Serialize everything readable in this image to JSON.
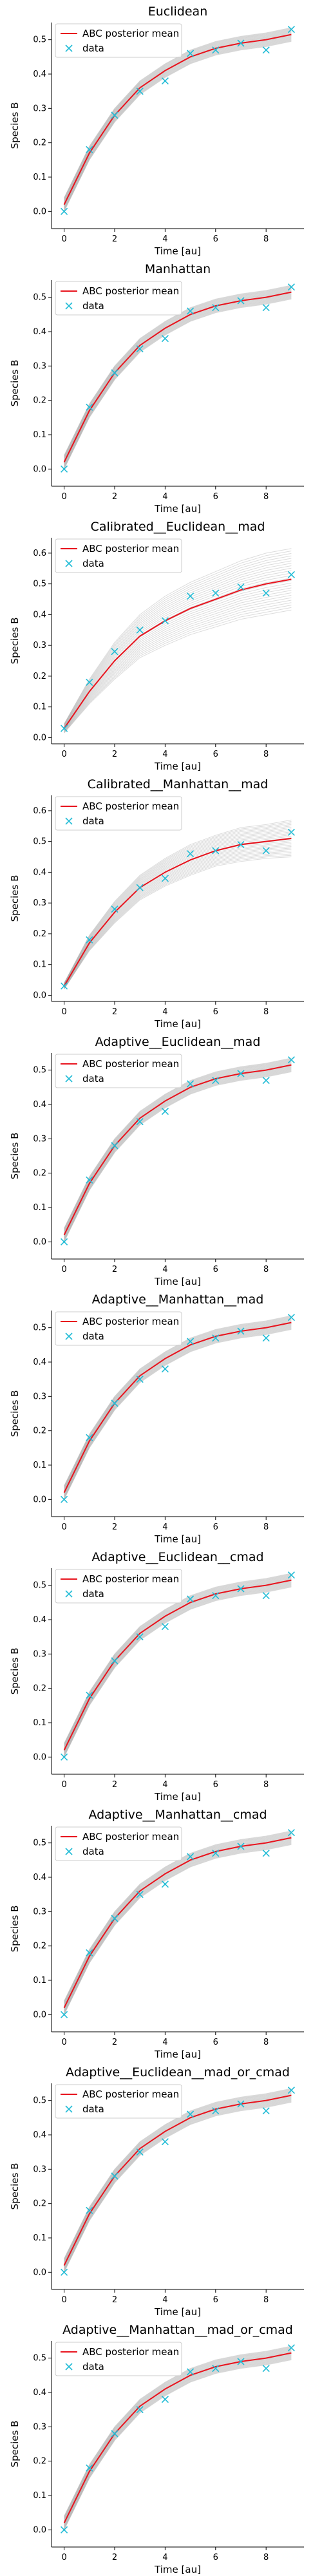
{
  "chart_data": [
    {
      "type": "line",
      "title": "Euclidean",
      "xlabel": "Time [au]",
      "ylabel": "Species B",
      "xlim": [
        -0.5,
        9.5
      ],
      "ylim": [
        -0.05,
        0.55
      ],
      "xticks": [
        0,
        2,
        4,
        6,
        8
      ],
      "yticks": [
        0.0,
        0.1,
        0.2,
        0.3,
        0.4,
        0.5
      ],
      "grid": false,
      "legend_position": "top-left",
      "series": [
        {
          "name": "ABC posterior mean",
          "style": "line",
          "color": "#e8141e",
          "x": [
            0,
            1,
            2,
            3,
            4,
            5,
            6,
            7,
            8,
            9
          ],
          "values": [
            0.02,
            0.17,
            0.28,
            0.36,
            0.41,
            0.45,
            0.475,
            0.49,
            0.5,
            0.515
          ]
        },
        {
          "name": "data",
          "style": "x-marker",
          "color": "#22bcd6",
          "x": [
            0,
            1,
            2,
            3,
            4,
            5,
            6,
            7,
            8,
            9
          ],
          "values": [
            0.0,
            0.18,
            0.28,
            0.35,
            0.38,
            0.46,
            0.47,
            0.49,
            0.47,
            0.53
          ]
        }
      ],
      "band": {
        "color": "#9a9a9a",
        "half_width": [
          0.02,
          0.02,
          0.02,
          0.02,
          0.02,
          0.02,
          0.02,
          0.02,
          0.02,
          0.02
        ]
      }
    },
    {
      "type": "line",
      "title": "Manhattan",
      "xlabel": "Time [au]",
      "ylabel": "Species B",
      "xlim": [
        -0.5,
        9.5
      ],
      "ylim": [
        -0.05,
        0.55
      ],
      "xticks": [
        0,
        2,
        4,
        6,
        8
      ],
      "yticks": [
        0.0,
        0.1,
        0.2,
        0.3,
        0.4,
        0.5
      ],
      "grid": false,
      "legend_position": "top-left",
      "series": [
        {
          "name": "ABC posterior mean",
          "style": "line",
          "color": "#e8141e",
          "x": [
            0,
            1,
            2,
            3,
            4,
            5,
            6,
            7,
            8,
            9
          ],
          "values": [
            0.02,
            0.17,
            0.28,
            0.36,
            0.41,
            0.45,
            0.475,
            0.49,
            0.5,
            0.515
          ]
        },
        {
          "name": "data",
          "style": "x-marker",
          "color": "#22bcd6",
          "x": [
            0,
            1,
            2,
            3,
            4,
            5,
            6,
            7,
            8,
            9
          ],
          "values": [
            0.0,
            0.18,
            0.28,
            0.35,
            0.38,
            0.46,
            0.47,
            0.49,
            0.47,
            0.53
          ]
        }
      ],
      "band": {
        "color": "#9a9a9a",
        "half_width": [
          0.02,
          0.02,
          0.02,
          0.02,
          0.02,
          0.02,
          0.02,
          0.02,
          0.02,
          0.02
        ]
      }
    },
    {
      "type": "line",
      "title": "Calibrated__Euclidean__mad",
      "xlabel": "Time [au]",
      "ylabel": "Species B",
      "xlim": [
        -0.5,
        9.5
      ],
      "ylim": [
        -0.02,
        0.65
      ],
      "xticks": [
        0,
        2,
        4,
        6,
        8
      ],
      "yticks": [
        0.0,
        0.1,
        0.2,
        0.3,
        0.4,
        0.5,
        0.6
      ],
      "grid": false,
      "legend_position": "top-left",
      "series": [
        {
          "name": "ABC posterior mean",
          "style": "line",
          "color": "#e8141e",
          "x": [
            0,
            1,
            2,
            3,
            4,
            5,
            6,
            7,
            8,
            9
          ],
          "values": [
            0.03,
            0.15,
            0.25,
            0.33,
            0.38,
            0.42,
            0.45,
            0.48,
            0.5,
            0.515
          ]
        },
        {
          "name": "data",
          "style": "x-marker",
          "color": "#22bcd6",
          "x": [
            0,
            1,
            2,
            3,
            4,
            5,
            6,
            7,
            8,
            9
          ],
          "values": [
            0.03,
            0.18,
            0.28,
            0.35,
            0.38,
            0.46,
            0.47,
            0.49,
            0.47,
            0.53
          ]
        }
      ],
      "band": {
        "color": "#9a9a9a",
        "half_width": [
          0.015,
          0.04,
          0.06,
          0.07,
          0.08,
          0.085,
          0.09,
          0.095,
          0.1,
          0.1
        ]
      }
    },
    {
      "type": "line",
      "title": "Calibrated__Manhattan__mad",
      "xlabel": "Time [au]",
      "ylabel": "Species B",
      "xlim": [
        -0.5,
        9.5
      ],
      "ylim": [
        -0.02,
        0.65
      ],
      "xticks": [
        0,
        2,
        4,
        6,
        8
      ],
      "yticks": [
        0.0,
        0.1,
        0.2,
        0.3,
        0.4,
        0.5,
        0.6
      ],
      "grid": false,
      "legend_position": "top-left",
      "series": [
        {
          "name": "ABC posterior mean",
          "style": "line",
          "color": "#e8141e",
          "x": [
            0,
            1,
            2,
            3,
            4,
            5,
            6,
            7,
            8,
            9
          ],
          "values": [
            0.03,
            0.17,
            0.27,
            0.35,
            0.4,
            0.44,
            0.47,
            0.49,
            0.5,
            0.51
          ]
        },
        {
          "name": "data",
          "style": "x-marker",
          "color": "#22bcd6",
          "x": [
            0,
            1,
            2,
            3,
            4,
            5,
            6,
            7,
            8,
            9
          ],
          "values": [
            0.03,
            0.18,
            0.28,
            0.35,
            0.38,
            0.46,
            0.47,
            0.49,
            0.47,
            0.53
          ]
        }
      ],
      "band": {
        "color": "#9a9a9a",
        "half_width": [
          0.01,
          0.025,
          0.035,
          0.04,
          0.045,
          0.05,
          0.05,
          0.055,
          0.055,
          0.06
        ]
      }
    },
    {
      "type": "line",
      "title": "Adaptive__Euclidean__mad",
      "xlabel": "Time [au]",
      "ylabel": "Species B",
      "xlim": [
        -0.5,
        9.5
      ],
      "ylim": [
        -0.05,
        0.55
      ],
      "xticks": [
        0,
        2,
        4,
        6,
        8
      ],
      "yticks": [
        0.0,
        0.1,
        0.2,
        0.3,
        0.4,
        0.5
      ],
      "grid": false,
      "legend_position": "top-left",
      "series": [
        {
          "name": "ABC posterior mean",
          "style": "line",
          "color": "#e8141e",
          "x": [
            0,
            1,
            2,
            3,
            4,
            5,
            6,
            7,
            8,
            9
          ],
          "values": [
            0.02,
            0.17,
            0.28,
            0.36,
            0.41,
            0.45,
            0.475,
            0.49,
            0.5,
            0.515
          ]
        },
        {
          "name": "data",
          "style": "x-marker",
          "color": "#22bcd6",
          "x": [
            0,
            1,
            2,
            3,
            4,
            5,
            6,
            7,
            8,
            9
          ],
          "values": [
            0.0,
            0.18,
            0.28,
            0.35,
            0.38,
            0.46,
            0.47,
            0.49,
            0.47,
            0.53
          ]
        }
      ],
      "band": {
        "color": "#9a9a9a",
        "half_width": [
          0.02,
          0.02,
          0.02,
          0.02,
          0.02,
          0.02,
          0.02,
          0.02,
          0.02,
          0.02
        ]
      }
    },
    {
      "type": "line",
      "title": "Adaptive__Manhattan__mad",
      "xlabel": "Time [au]",
      "ylabel": "Species B",
      "xlim": [
        -0.5,
        9.5
      ],
      "ylim": [
        -0.05,
        0.55
      ],
      "xticks": [
        0,
        2,
        4,
        6,
        8
      ],
      "yticks": [
        0.0,
        0.1,
        0.2,
        0.3,
        0.4,
        0.5
      ],
      "grid": false,
      "legend_position": "top-left",
      "series": [
        {
          "name": "ABC posterior mean",
          "style": "line",
          "color": "#e8141e",
          "x": [
            0,
            1,
            2,
            3,
            4,
            5,
            6,
            7,
            8,
            9
          ],
          "values": [
            0.02,
            0.17,
            0.28,
            0.36,
            0.41,
            0.45,
            0.475,
            0.49,
            0.5,
            0.515
          ]
        },
        {
          "name": "data",
          "style": "x-marker",
          "color": "#22bcd6",
          "x": [
            0,
            1,
            2,
            3,
            4,
            5,
            6,
            7,
            8,
            9
          ],
          "values": [
            0.0,
            0.18,
            0.28,
            0.35,
            0.38,
            0.46,
            0.47,
            0.49,
            0.47,
            0.53
          ]
        }
      ],
      "band": {
        "color": "#9a9a9a",
        "half_width": [
          0.02,
          0.02,
          0.02,
          0.02,
          0.02,
          0.02,
          0.02,
          0.02,
          0.02,
          0.02
        ]
      }
    },
    {
      "type": "line",
      "title": "Adaptive__Euclidean__cmad",
      "xlabel": "Time [au]",
      "ylabel": "Species B",
      "xlim": [
        -0.5,
        9.5
      ],
      "ylim": [
        -0.05,
        0.55
      ],
      "xticks": [
        0,
        2,
        4,
        6,
        8
      ],
      "yticks": [
        0.0,
        0.1,
        0.2,
        0.3,
        0.4,
        0.5
      ],
      "grid": false,
      "legend_position": "top-left",
      "series": [
        {
          "name": "ABC posterior mean",
          "style": "line",
          "color": "#e8141e",
          "x": [
            0,
            1,
            2,
            3,
            4,
            5,
            6,
            7,
            8,
            9
          ],
          "values": [
            0.02,
            0.17,
            0.28,
            0.36,
            0.41,
            0.45,
            0.475,
            0.49,
            0.5,
            0.515
          ]
        },
        {
          "name": "data",
          "style": "x-marker",
          "color": "#22bcd6",
          "x": [
            0,
            1,
            2,
            3,
            4,
            5,
            6,
            7,
            8,
            9
          ],
          "values": [
            0.0,
            0.18,
            0.28,
            0.35,
            0.38,
            0.46,
            0.47,
            0.49,
            0.47,
            0.53
          ]
        }
      ],
      "band": {
        "color": "#9a9a9a",
        "half_width": [
          0.02,
          0.02,
          0.02,
          0.02,
          0.02,
          0.02,
          0.02,
          0.02,
          0.02,
          0.02
        ]
      }
    },
    {
      "type": "line",
      "title": "Adaptive__Manhattan__cmad",
      "xlabel": "Time [au]",
      "ylabel": "Species B",
      "xlim": [
        -0.5,
        9.5
      ],
      "ylim": [
        -0.05,
        0.55
      ],
      "xticks": [
        0,
        2,
        4,
        6,
        8
      ],
      "yticks": [
        0.0,
        0.1,
        0.2,
        0.3,
        0.4,
        0.5
      ],
      "grid": false,
      "legend_position": "top-left",
      "series": [
        {
          "name": "ABC posterior mean",
          "style": "line",
          "color": "#e8141e",
          "x": [
            0,
            1,
            2,
            3,
            4,
            5,
            6,
            7,
            8,
            9
          ],
          "values": [
            0.02,
            0.17,
            0.28,
            0.36,
            0.41,
            0.45,
            0.475,
            0.49,
            0.5,
            0.515
          ]
        },
        {
          "name": "data",
          "style": "x-marker",
          "color": "#22bcd6",
          "x": [
            0,
            1,
            2,
            3,
            4,
            5,
            6,
            7,
            8,
            9
          ],
          "values": [
            0.0,
            0.18,
            0.28,
            0.35,
            0.38,
            0.46,
            0.47,
            0.49,
            0.47,
            0.53
          ]
        }
      ],
      "band": {
        "color": "#9a9a9a",
        "half_width": [
          0.02,
          0.02,
          0.02,
          0.02,
          0.02,
          0.02,
          0.02,
          0.02,
          0.02,
          0.02
        ]
      }
    },
    {
      "type": "line",
      "title": "Adaptive__Euclidean__mad_or_cmad",
      "xlabel": "Time [au]",
      "ylabel": "Species B",
      "xlim": [
        -0.5,
        9.5
      ],
      "ylim": [
        -0.05,
        0.55
      ],
      "xticks": [
        0,
        2,
        4,
        6,
        8
      ],
      "yticks": [
        0.0,
        0.1,
        0.2,
        0.3,
        0.4,
        0.5
      ],
      "grid": false,
      "legend_position": "top-left",
      "series": [
        {
          "name": "ABC posterior mean",
          "style": "line",
          "color": "#e8141e",
          "x": [
            0,
            1,
            2,
            3,
            4,
            5,
            6,
            7,
            8,
            9
          ],
          "values": [
            0.02,
            0.17,
            0.28,
            0.36,
            0.41,
            0.45,
            0.475,
            0.49,
            0.5,
            0.515
          ]
        },
        {
          "name": "data",
          "style": "x-marker",
          "color": "#22bcd6",
          "x": [
            0,
            1,
            2,
            3,
            4,
            5,
            6,
            7,
            8,
            9
          ],
          "values": [
            0.0,
            0.18,
            0.28,
            0.35,
            0.38,
            0.46,
            0.47,
            0.49,
            0.47,
            0.53
          ]
        }
      ],
      "band": {
        "color": "#9a9a9a",
        "half_width": [
          0.02,
          0.02,
          0.02,
          0.02,
          0.02,
          0.02,
          0.02,
          0.02,
          0.02,
          0.02
        ]
      }
    },
    {
      "type": "line",
      "title": "Adaptive__Manhattan__mad_or_cmad",
      "xlabel": "Time [au]",
      "ylabel": "Species B",
      "xlim": [
        -0.5,
        9.5
      ],
      "ylim": [
        -0.05,
        0.55
      ],
      "xticks": [
        0,
        2,
        4,
        6,
        8
      ],
      "yticks": [
        0.0,
        0.1,
        0.2,
        0.3,
        0.4,
        0.5
      ],
      "grid": false,
      "legend_position": "top-left",
      "series": [
        {
          "name": "ABC posterior mean",
          "style": "line",
          "color": "#e8141e",
          "x": [
            0,
            1,
            2,
            3,
            4,
            5,
            6,
            7,
            8,
            9
          ],
          "values": [
            0.02,
            0.17,
            0.28,
            0.36,
            0.41,
            0.45,
            0.475,
            0.49,
            0.5,
            0.515
          ]
        },
        {
          "name": "data",
          "style": "x-marker",
          "color": "#22bcd6",
          "x": [
            0,
            1,
            2,
            3,
            4,
            5,
            6,
            7,
            8,
            9
          ],
          "values": [
            0.0,
            0.18,
            0.28,
            0.35,
            0.38,
            0.46,
            0.47,
            0.49,
            0.47,
            0.53
          ]
        }
      ],
      "band": {
        "color": "#9a9a9a",
        "half_width": [
          0.02,
          0.02,
          0.02,
          0.02,
          0.02,
          0.02,
          0.02,
          0.02,
          0.02,
          0.02
        ]
      }
    }
  ]
}
